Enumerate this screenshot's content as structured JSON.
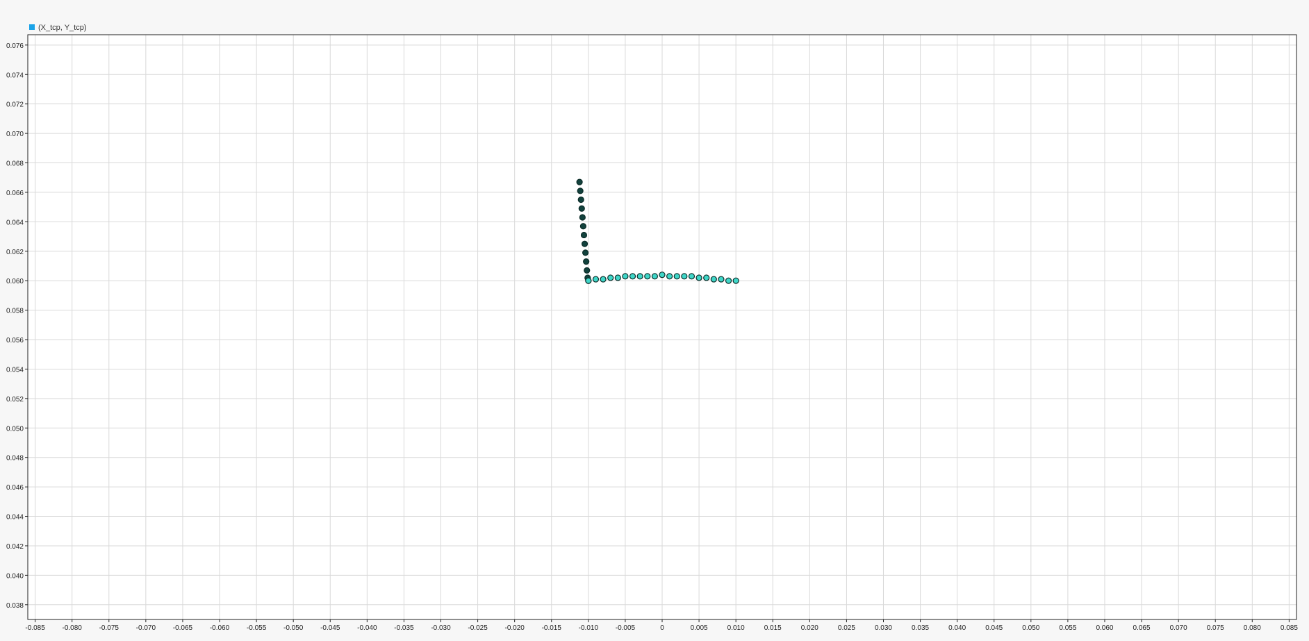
{
  "legend": {
    "label": "(X_tcp, Y_tcp)",
    "color": "#1aa3e8"
  },
  "colors": {
    "background": "#f7f7f7",
    "plot_area": "#ffffff",
    "grid": "#d9d9d9",
    "axis": "#222222",
    "tick_text": "#222222",
    "marker_dark": "#12423d",
    "marker_light": "#3fd6c8",
    "marker_stroke": "#0b2b27"
  },
  "chart_data": {
    "type": "scatter",
    "title": "",
    "xlabel": "",
    "ylabel": "",
    "xlim": [
      -0.086,
      0.086
    ],
    "ylim": [
      0.037,
      0.0767
    ],
    "grid": true,
    "legend_position": "top-left",
    "x_ticks": [
      "-0.085",
      "-0.080",
      "-0.075",
      "-0.070",
      "-0.065",
      "-0.060",
      "-0.055",
      "-0.050",
      "-0.045",
      "-0.040",
      "-0.035",
      "-0.030",
      "-0.025",
      "-0.020",
      "-0.015",
      "-0.010",
      "-0.005",
      "0",
      "0.005",
      "0.010",
      "0.015",
      "0.020",
      "0.025",
      "0.030",
      "0.035",
      "0.040",
      "0.045",
      "0.050",
      "0.055",
      "0.060",
      "0.065",
      "0.070",
      "0.075",
      "0.080",
      "0.085"
    ],
    "y_ticks": [
      "0.038",
      "0.040",
      "0.042",
      "0.044",
      "0.046",
      "0.048",
      "0.050",
      "0.052",
      "0.054",
      "0.056",
      "0.058",
      "0.060",
      "0.062",
      "0.064",
      "0.066",
      "0.068",
      "0.070",
      "0.072",
      "0.074",
      "0.076"
    ],
    "series": [
      {
        "name": "(X_tcp, Y_tcp)",
        "segments": [
          {
            "shade": "dark",
            "x": [
              -0.0112,
              -0.0111,
              -0.011,
              -0.0109,
              -0.0108,
              -0.0107,
              -0.0106,
              -0.0105,
              -0.0104,
              -0.0103,
              -0.0102,
              -0.0101,
              -0.01
            ],
            "y": [
              0.0667,
              0.0661,
              0.0655,
              0.0649,
              0.0643,
              0.0637,
              0.0631,
              0.0625,
              0.0619,
              0.0613,
              0.0607,
              0.0602,
              0.06
            ]
          },
          {
            "shade": "light",
            "x": [
              -0.01,
              -0.009,
              -0.008,
              -0.007,
              -0.006,
              -0.005,
              -0.004,
              -0.003,
              -0.002,
              -0.001,
              0.0,
              0.001,
              0.002,
              0.003,
              0.004,
              0.005,
              0.006,
              0.007,
              0.008,
              0.009,
              0.01
            ],
            "y": [
              0.06,
              0.0601,
              0.0601,
              0.0602,
              0.0602,
              0.0603,
              0.0603,
              0.0603,
              0.0603,
              0.0603,
              0.0604,
              0.0603,
              0.0603,
              0.0603,
              0.0603,
              0.0602,
              0.0602,
              0.0601,
              0.0601,
              0.06,
              0.06
            ]
          }
        ]
      }
    ]
  }
}
